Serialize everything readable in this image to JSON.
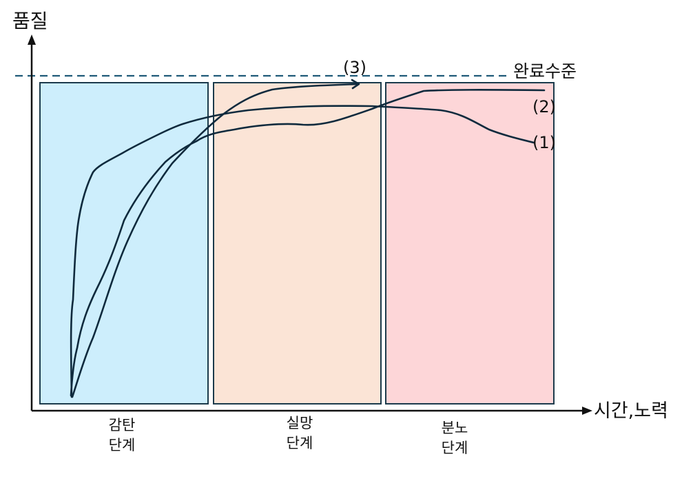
{
  "diagram": {
    "y_axis_label": "품질",
    "x_axis_label": "시간,노력",
    "completion_line_label": "완료수준",
    "phases": [
      {
        "line1": "감탄",
        "line2": "단계",
        "color": "#cdeefc"
      },
      {
        "line1": "실망",
        "line2": "단계",
        "color": "#fbe4d6"
      },
      {
        "line1": "분노",
        "line2": "단계",
        "color": "#fdd6d8"
      }
    ],
    "curves": [
      {
        "label": "(1)"
      },
      {
        "label": "(2)"
      },
      {
        "label": "(3)"
      }
    ],
    "colors": {
      "curve": "#0f2a3d",
      "axis": "#111111",
      "completion_line": "#1f5a78",
      "phase_border": "#1b3a4b"
    }
  }
}
